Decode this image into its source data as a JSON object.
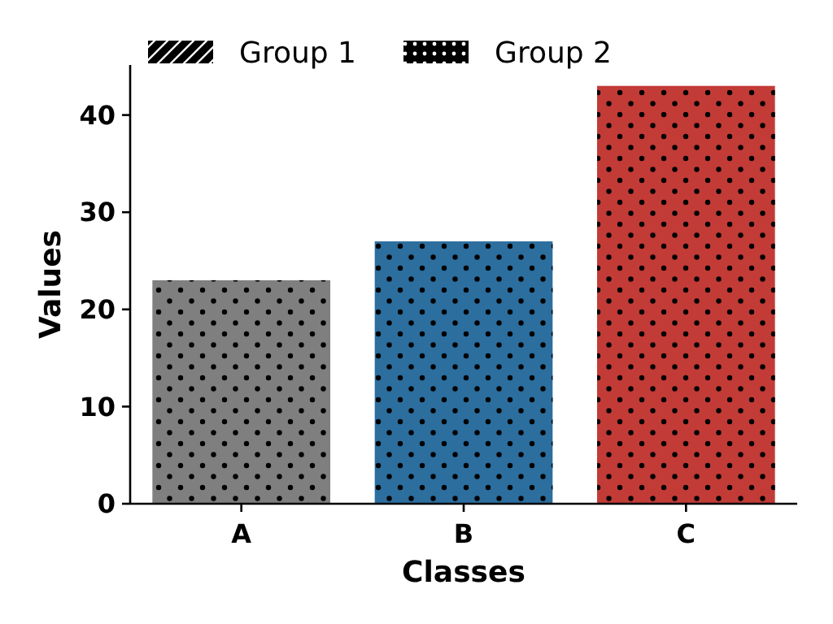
{
  "chart_data": {
    "type": "bar",
    "xlabel": "Classes",
    "ylabel": "Values",
    "categories": [
      "A",
      "B",
      "C"
    ],
    "series": [
      {
        "name": "Group 1",
        "color": "#000000",
        "values": [
          null,
          null,
          null
        ]
      },
      {
        "name": "Group 2",
        "color": "#000000",
        "colors": [
          "#7f7f7f",
          "#2c6e9e",
          "#c23b37"
        ],
        "values": [
          23,
          27,
          43
        ]
      }
    ],
    "ylim": [
      0,
      45.15
    ],
    "yticks": [
      0,
      10,
      20,
      30,
      40
    ],
    "legend": "top",
    "grid": false
  }
}
